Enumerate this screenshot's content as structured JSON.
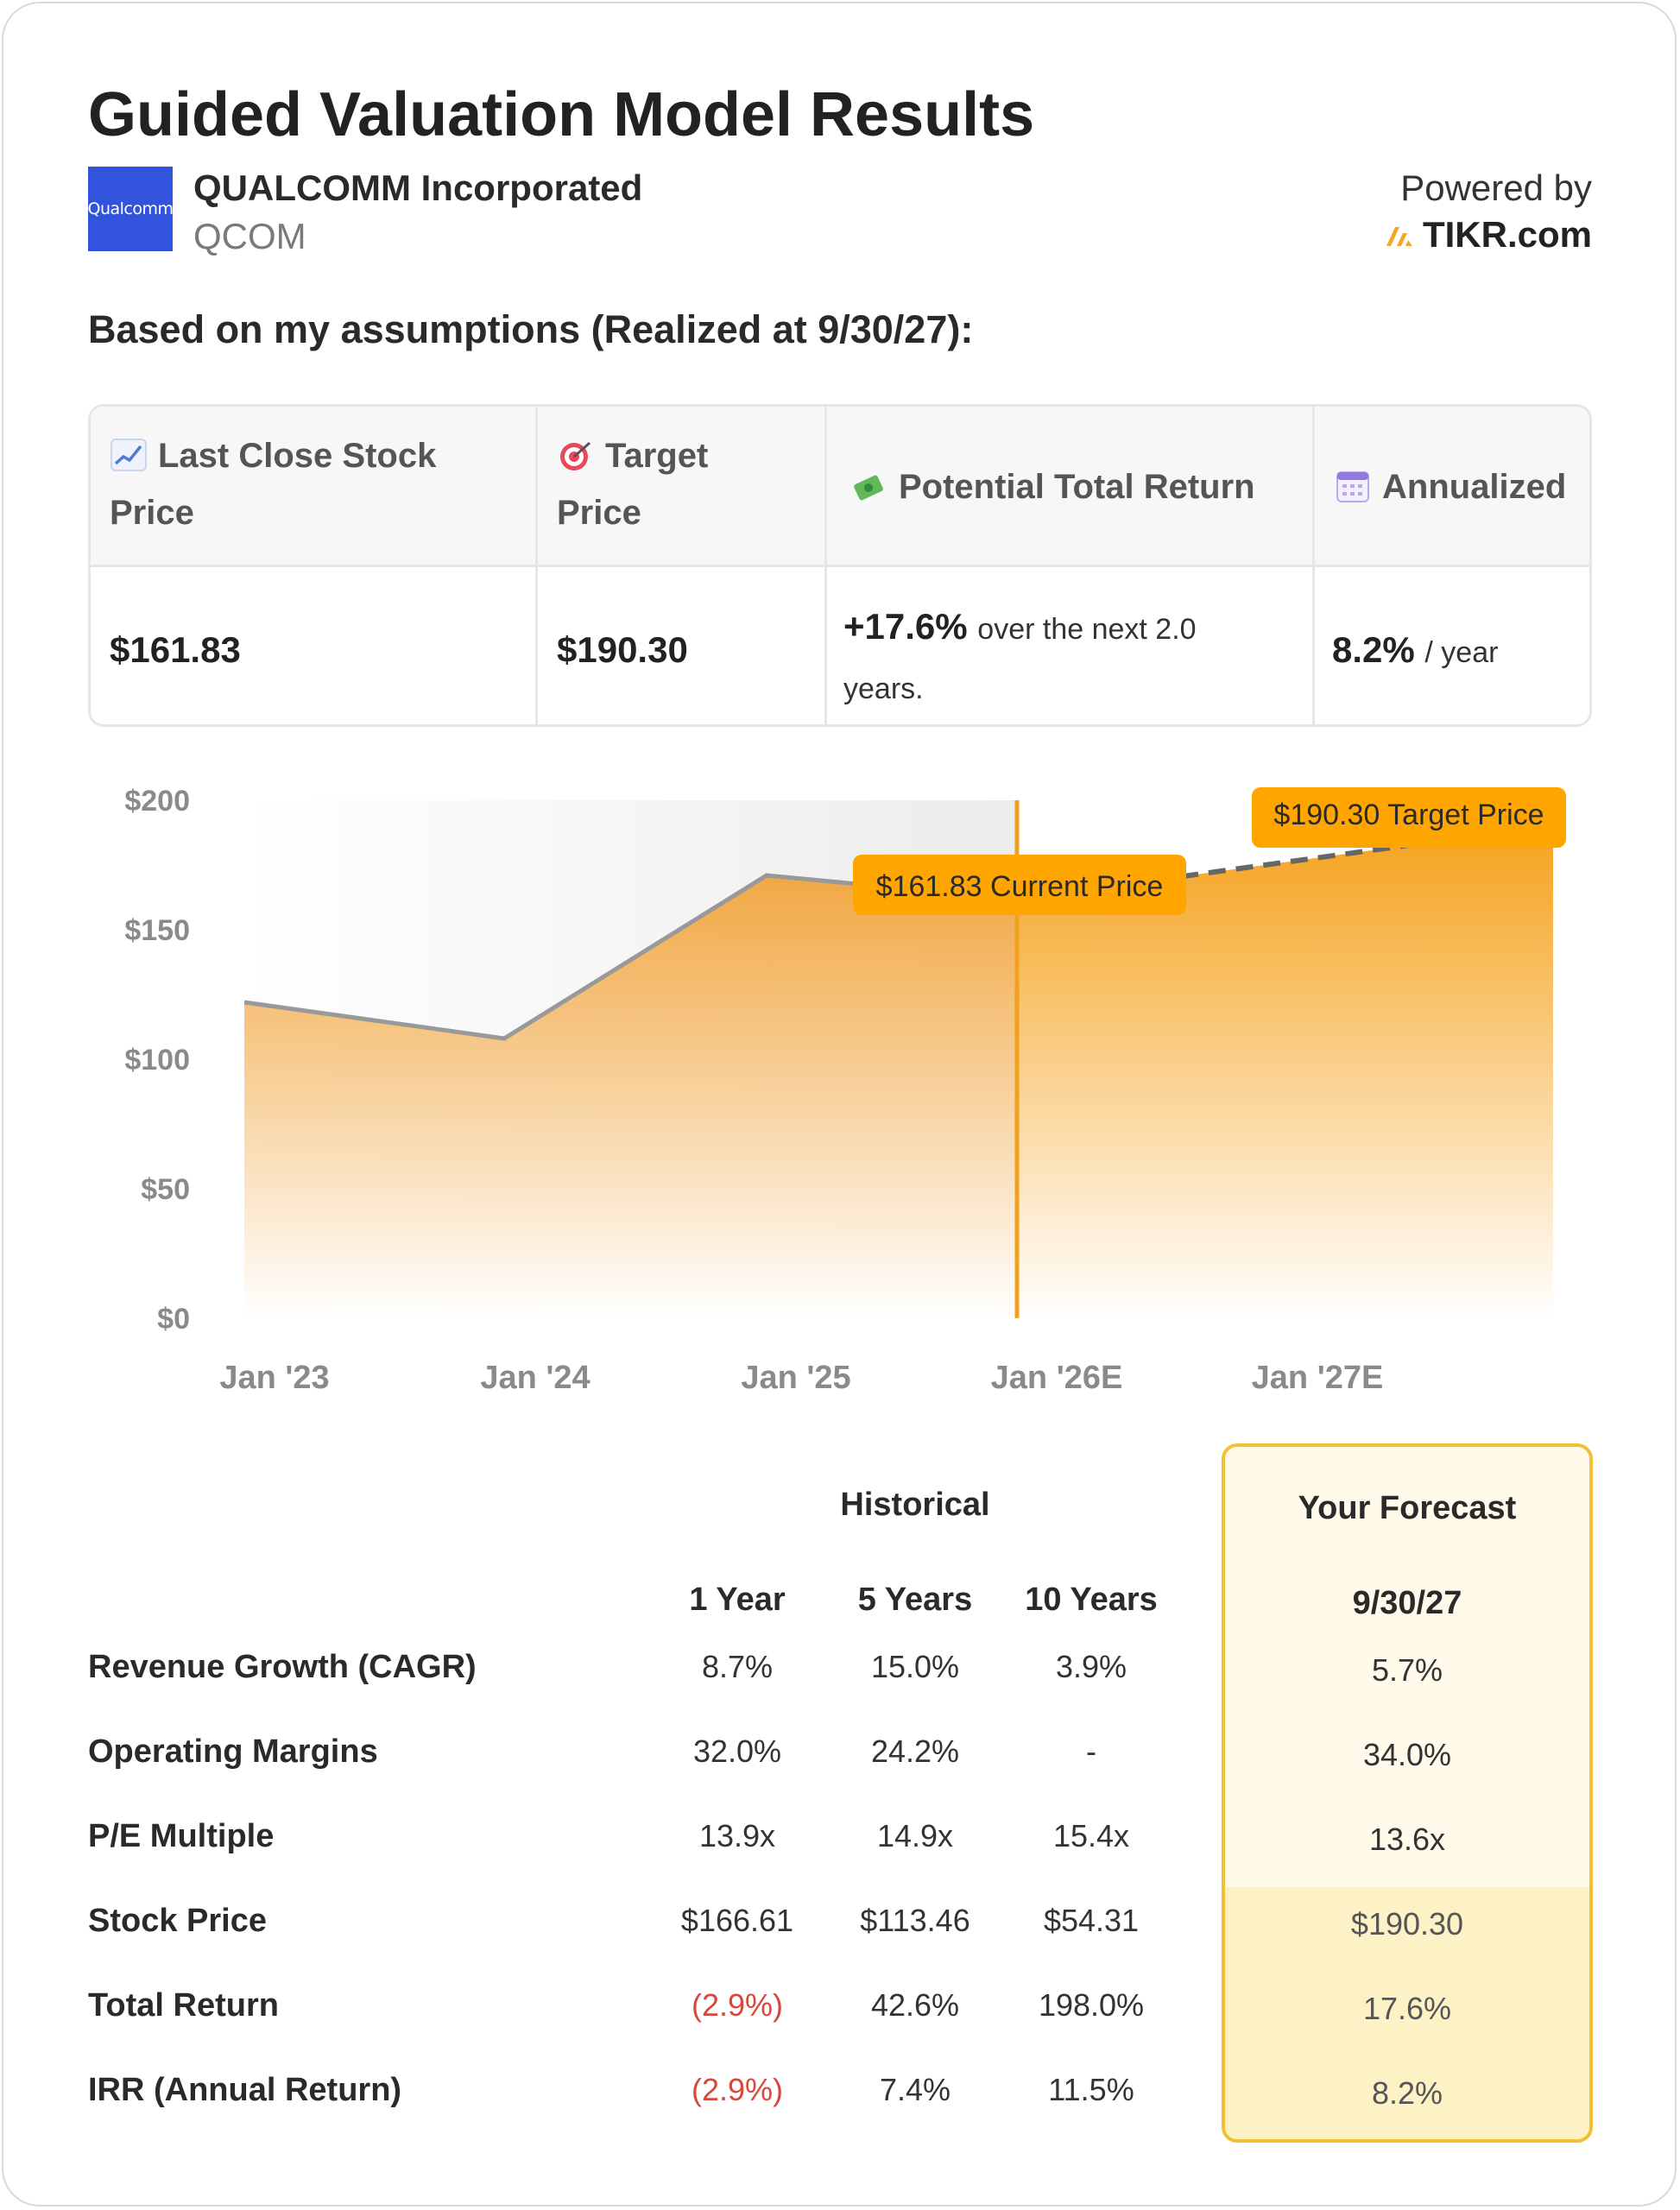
{
  "title": "Guided Valuation Model Results",
  "company": {
    "logo_text": "Qualcomm",
    "name": "QUALCOMM Incorporated",
    "ticker": "QCOM",
    "logo_color": "#3253dc"
  },
  "branding": {
    "powered_by": "Powered by",
    "site": "TIKR.com",
    "accent": "#f5a623"
  },
  "subheading": "Based on my assumptions (Realized at 9/30/27):",
  "summary": {
    "headers": {
      "last_close_line1": "Last Close Stock",
      "last_close_line2": "Price",
      "target_line1": "Target",
      "target_line2": "Price",
      "potential": "Potential Total Return",
      "annualized": "Annualized"
    },
    "icons": [
      "chart-increasing-icon",
      "target-icon",
      "money-with-wings-icon",
      "calendar-icon"
    ],
    "last_close": "$161.83",
    "target": "$190.30",
    "return_value": "+17.6%",
    "return_suffix_1": "over the next 2.0",
    "return_suffix_2": "years.",
    "annualized_value": "8.2%",
    "annualized_suffix": "/ year"
  },
  "chart_data": {
    "type": "area",
    "x": [
      "Jan '23",
      "Jan '24",
      "Jan '25",
      "Jan '26E",
      "Jan '27E"
    ],
    "ylim": [
      0,
      200
    ],
    "yticks": [
      "$0",
      "$50",
      "$100",
      "$150",
      "$200"
    ],
    "historical": [
      {
        "x": "Jan '23",
        "y": 122
      },
      {
        "x": "Jan '24",
        "y": 108
      },
      {
        "x": "Jan '25",
        "y": 171
      },
      {
        "x": "Current",
        "y": 161.83
      }
    ],
    "forecast": [
      {
        "x": "Current",
        "y": 161.83
      },
      {
        "x": "9/30/27",
        "y": 190.3
      }
    ],
    "current_label": "$161.83 Current Price",
    "target_label": "$190.30 Target Price",
    "colors": {
      "fill": "#f5a623",
      "line": "#999999",
      "marker": "#f0a11f",
      "label_bg": "#ffa500"
    }
  },
  "metrics": {
    "historical_header": "Historical",
    "forecast_header": "Your Forecast",
    "columns": [
      "1 Year",
      "5 Years",
      "10 Years"
    ],
    "forecast_date": "9/30/27",
    "rows": [
      {
        "label": "Revenue Growth (CAGR)",
        "values": [
          "8.7%",
          "15.0%",
          "3.9%"
        ],
        "forecast": "5.7%"
      },
      {
        "label": "Operating Margins",
        "values": [
          "32.0%",
          "24.2%",
          "-"
        ],
        "forecast": "34.0%"
      },
      {
        "label": "P/E Multiple",
        "values": [
          "13.9x",
          "14.9x",
          "15.4x"
        ],
        "forecast": "13.6x"
      },
      {
        "label": "Stock Price",
        "values": [
          "$166.61",
          "$113.46",
          "$54.31"
        ],
        "forecast": "$190.30"
      },
      {
        "label": "Total Return",
        "values": [
          "(2.9%)",
          "42.6%",
          "198.0%"
        ],
        "forecast": "17.6%"
      },
      {
        "label": "IRR (Annual Return)",
        "values": [
          "(2.9%)",
          "7.4%",
          "11.5%"
        ],
        "forecast": "8.2%"
      }
    ]
  }
}
